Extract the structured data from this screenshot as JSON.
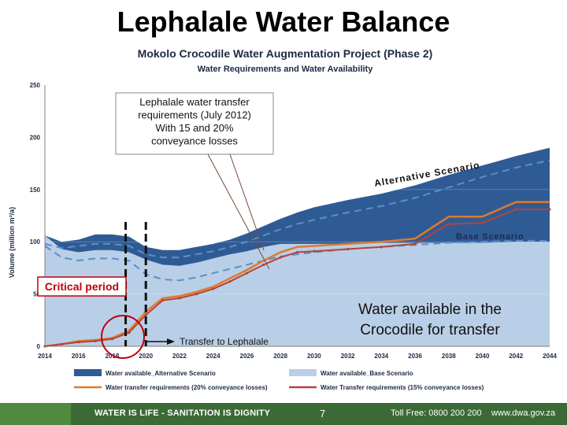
{
  "slide": {
    "title": "Lephalale Water Balance",
    "chart_title": "Mokolo Crocodile Water Augmentation Project (Phase 2)",
    "chart_subtitle": "Water Requirements and Water Availability"
  },
  "annotations": {
    "callout": [
      "Lephalale water transfer",
      "requirements (July 2012)",
      "With 15 and 20%",
      "conveyance losses"
    ],
    "alternative": "Alternative Scenario",
    "base": "Base Scenario",
    "critical": "Critical period",
    "available": [
      "Water available in the",
      "Crocodile for transfer"
    ],
    "transfer": "Transfer to Lephalale"
  },
  "footer": {
    "slogan": "WATER IS LIFE - SANITATION IS DIGNITY",
    "page": "7",
    "phone": "Toll Free: 0800 200 200",
    "web": "www.dwa.gov.za"
  },
  "colors": {
    "alt_fill": "#2f5b95",
    "base_fill": "#b9cfe7",
    "dash_line": "#5b8fc9",
    "req20": "#e07a2c",
    "req15": "#b5433a",
    "critical_box": "#c0000b",
    "footer": "#3c6a36"
  },
  "chart_data": {
    "type": "area",
    "ylabel": "Volume (million m³/a)",
    "xlabel": "",
    "ylim": [
      0,
      250
    ],
    "xlim": [
      2014,
      2044
    ],
    "x_ticks": [
      "2014",
      "2016",
      "2018",
      "2020",
      "2022",
      "2024",
      "2026",
      "2028",
      "2030",
      "2032",
      "2034",
      "2036",
      "2038",
      "2040",
      "2042",
      "2044"
    ],
    "y_ticks": [
      "0",
      "50",
      "100",
      "150",
      "200",
      "250"
    ],
    "x": [
      2014,
      2015,
      2016,
      2017,
      2018,
      2019,
      2020,
      2021,
      2022,
      2023,
      2024,
      2025,
      2026,
      2027,
      2028,
      2029,
      2030,
      2032,
      2034,
      2036,
      2038,
      2040,
      2042,
      2044
    ],
    "series": [
      {
        "name": "Water available_Alternative Scenario",
        "values": [
          106,
          100,
          102,
          107,
          107,
          105,
          95,
          92,
          92,
          95,
          98,
          102,
          108,
          115,
          122,
          128,
          133,
          140,
          146,
          154,
          164,
          173,
          182,
          190
        ]
      },
      {
        "name": "Water available_Base Scenario",
        "values": [
          106,
          93,
          90,
          92,
          92,
          90,
          83,
          78,
          77,
          80,
          84,
          88,
          91,
          95,
          98,
          98,
          98,
          98,
          99,
          99,
          99,
          99,
          100,
          100
        ]
      },
      {
        "name": "Water transfer requirements (20% conveyance losses)",
        "values": [
          0,
          2,
          5,
          6,
          8,
          15,
          33,
          46,
          48,
          52,
          57,
          65,
          73,
          82,
          90,
          95,
          96,
          98,
          100,
          103,
          124,
          124,
          138,
          138
        ]
      },
      {
        "name": "Water Transfer requirements (15% conveyance losses)",
        "values": [
          0,
          2,
          4,
          5,
          7,
          13,
          30,
          44,
          46,
          50,
          55,
          62,
          70,
          78,
          85,
          90,
          91,
          93,
          95,
          98,
          117,
          118,
          131,
          131
        ]
      }
    ],
    "dashed_lines": [
      {
        "values": [
          98,
          94,
          96,
          98,
          98,
          96,
          88,
          85,
          85,
          88,
          91,
          95,
          100,
          106,
          112,
          117,
          121,
          128,
          134,
          142,
          152,
          162,
          171,
          178
        ]
      },
      {
        "values": [
          96,
          85,
          82,
          84,
          84,
          82,
          69,
          64,
          63,
          66,
          70,
          74,
          78,
          82,
          86,
          88,
          90,
          93,
          95,
          97,
          99,
          100,
          101,
          101
        ]
      }
    ]
  }
}
